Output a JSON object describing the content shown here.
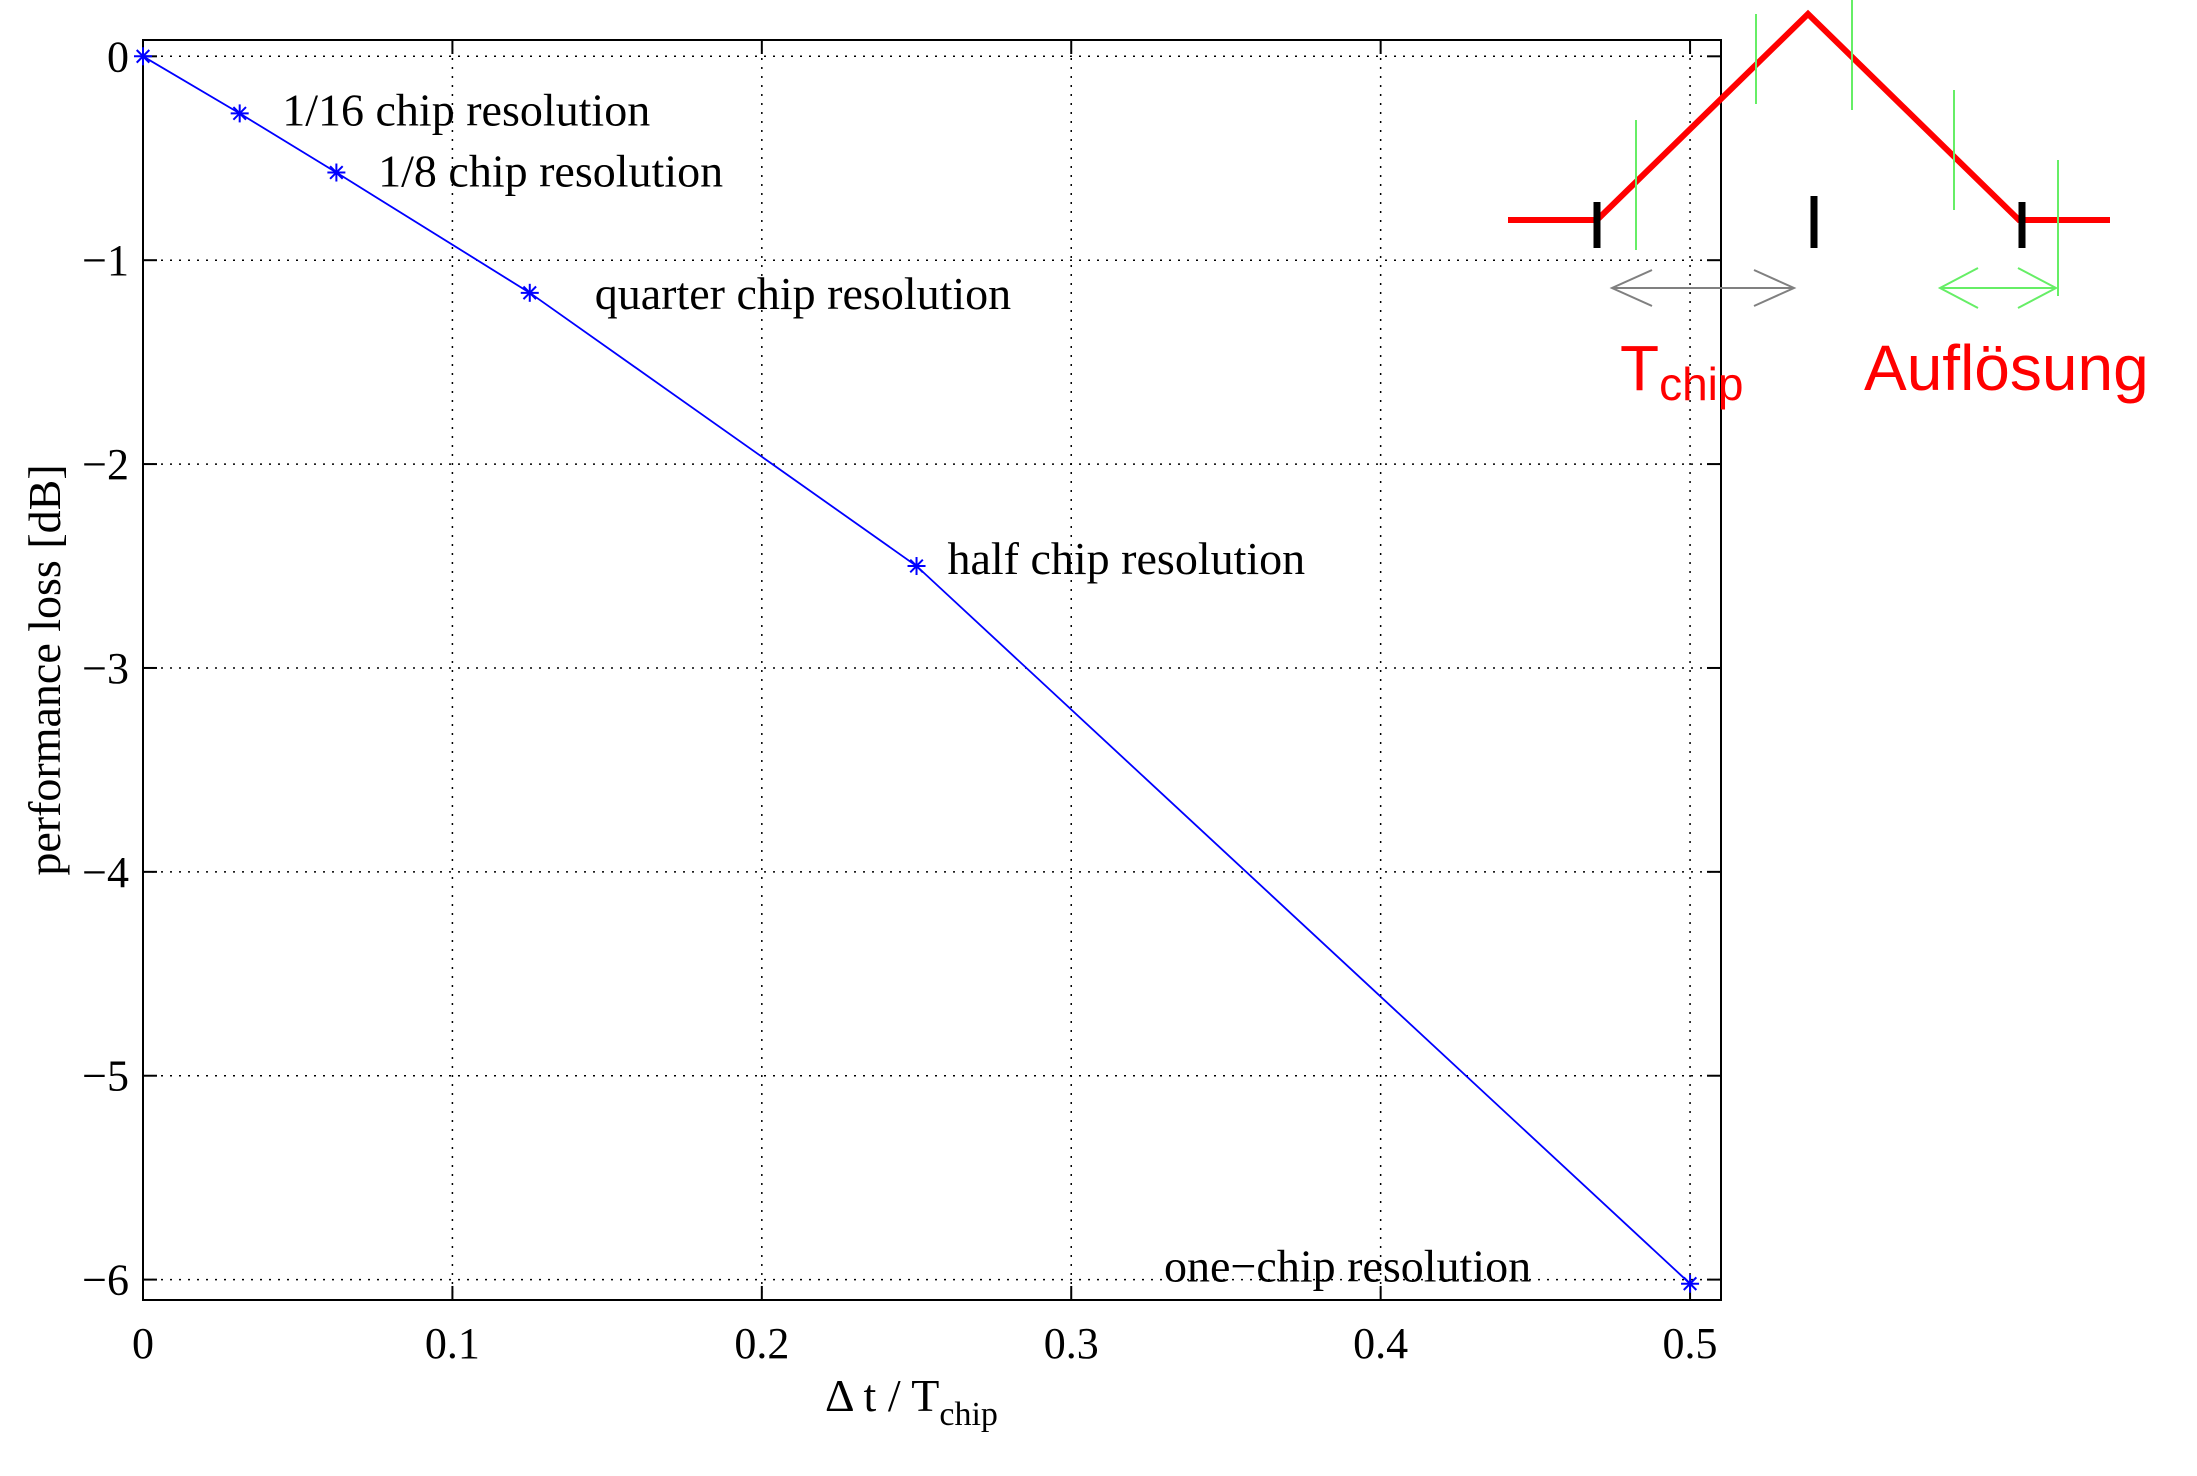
{
  "chart_data": {
    "type": "line",
    "xlabel": {
      "main": "Δ t / T",
      "sub": "chip"
    },
    "ylabel": "performance loss [dB]",
    "xlim": [
      0,
      0.51
    ],
    "ylim": [
      -6.1,
      0.08
    ],
    "xticks": [
      0,
      0.1,
      0.2,
      0.3,
      0.4,
      0.5
    ],
    "xtick_labels": [
      "0",
      "0.1",
      "0.2",
      "0.3",
      "0.4",
      "0.5"
    ],
    "yticks": [
      0,
      -1,
      -2,
      -3,
      -4,
      -5,
      -6
    ],
    "ytick_labels": [
      "0",
      "−1",
      "−2",
      "−3",
      "−4",
      "−5",
      "−6"
    ],
    "grid": true,
    "series": [
      {
        "color": "#0000ff",
        "x": [
          0,
          0.03125,
          0.0625,
          0.125,
          0.25,
          0.5
        ],
        "y": [
          0,
          -0.28,
          -0.57,
          -1.16,
          -2.5,
          -6.02
        ]
      }
    ],
    "markers": [
      {
        "x": 0,
        "y": 0
      },
      {
        "x": 0.03125,
        "y": -0.28
      },
      {
        "x": 0.0625,
        "y": -0.57
      },
      {
        "x": 0.125,
        "y": -1.16
      },
      {
        "x": 0.25,
        "y": -2.5
      },
      {
        "x": 0.5,
        "y": -6.02
      }
    ],
    "annotations": [
      {
        "text": "1/16 chip resolution",
        "x": 0.045,
        "y": -0.26
      },
      {
        "text": "1/8 chip resolution",
        "x": 0.076,
        "y": -0.56
      },
      {
        "text": "quarter chip resolution",
        "x": 0.146,
        "y": -1.16
      },
      {
        "text": "half chip resolution",
        "x": 0.26,
        "y": -2.46
      },
      {
        "text": "one−chip resolution",
        "x": 0.33,
        "y": -5.93
      }
    ]
  },
  "inset": {
    "label_tchip_main": "T",
    "label_tchip_sub": "chip",
    "label_resolution": "Auflösung",
    "colors": {
      "triangle": "#ff0000",
      "resolution": "#66ee66",
      "tchip_arrow": "#808080",
      "marks": "#000000"
    }
  }
}
